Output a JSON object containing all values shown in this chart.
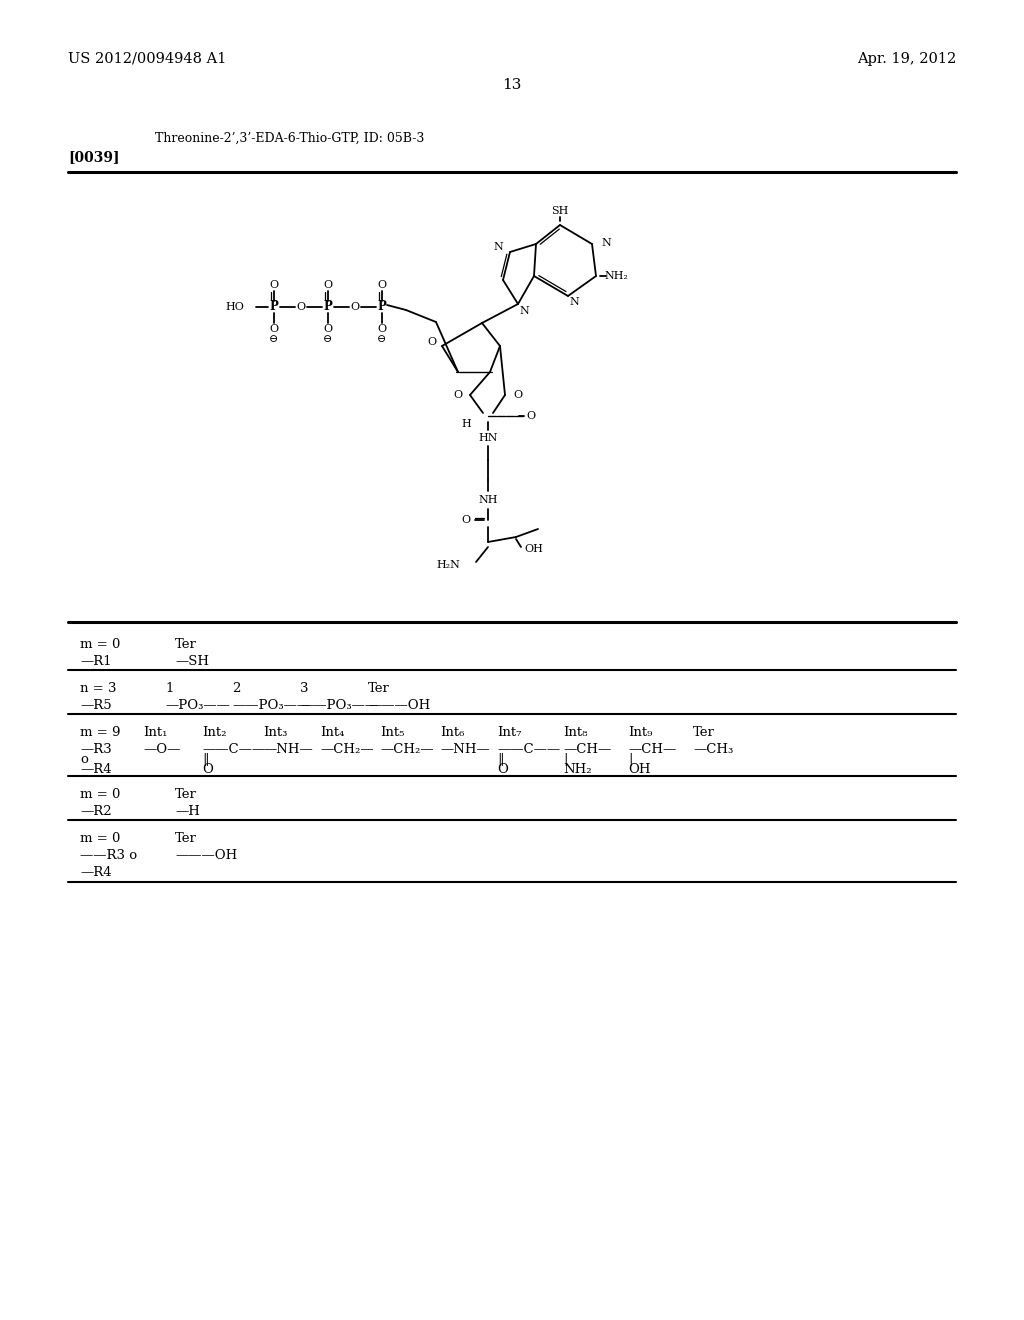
{
  "bg_color": "#ffffff",
  "text_color": "#000000",
  "header_left": "US 2012/0094948 A1",
  "header_right": "Apr. 19, 2012",
  "page_number": "13",
  "compound_name": "Threonine-2’,3’-EDA-6-Thio-GTP, ID: 05B-3",
  "paragraph_ref": "[0039]"
}
